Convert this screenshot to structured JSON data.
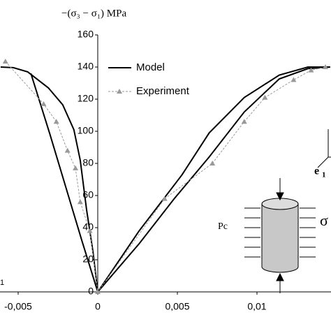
{
  "chart_data": {
    "type": "line",
    "y_label": "−(σ₃ − σ₁) MPa",
    "xlim": [
      -0.00614,
      0.01465
    ],
    "ylim": [
      0,
      160
    ],
    "xticks": [
      {
        "value": -0.005,
        "label": "-0,005"
      },
      0,
      {
        "value": 0.005,
        "label": "0,005"
      },
      {
        "value": 0.01,
        "label": "0,01"
      }
    ],
    "yticks": [
      0,
      20,
      40,
      60,
      80,
      100,
      120,
      140,
      160
    ],
    "series": [
      {
        "name": "Model",
        "color": "#000000",
        "dash": false,
        "markers": false,
        "x": [
          -0.0061,
          -0.0053,
          -0.0044,
          -0.0031,
          -0.0022,
          -0.0015,
          -0.0011,
          -0.0007,
          -0.0003,
          0,
          0.0026,
          0.0048,
          0.007,
          0.0092,
          0.0114,
          0.0132,
          0.0146,
          0.0132,
          0.0114,
          0.0092,
          0.007,
          0.0053,
          0.0026,
          0,
          -0.001,
          -0.002,
          -0.003,
          -0.0042
        ],
        "values": [
          140,
          139.6,
          137,
          127,
          116.5,
          101,
          82,
          51,
          25,
          0,
          30,
          58,
          84,
          112,
          132.6,
          139,
          140,
          140,
          135,
          121,
          99,
          73,
          38,
          0,
          32,
          65,
          98,
          136
        ]
      },
      {
        "name": "Experiment",
        "color": "#999999",
        "dash": true,
        "markers": true,
        "x": [
          -0.0058,
          -0.0034,
          -0.0026,
          -0.0019,
          -0.0014,
          -0.0011,
          -0.0005,
          0,
          0.0042,
          0.0072,
          0.0092,
          0.0105,
          0.0123,
          0.0134,
          0.0143
        ],
        "values": [
          143.5,
          117,
          106,
          88,
          77,
          56,
          38,
          0,
          58,
          80,
          106,
          121,
          132,
          138,
          140
        ]
      }
    ],
    "annotations": [
      "Pc",
      "σ",
      "e",
      "1",
      "1"
    ]
  }
}
